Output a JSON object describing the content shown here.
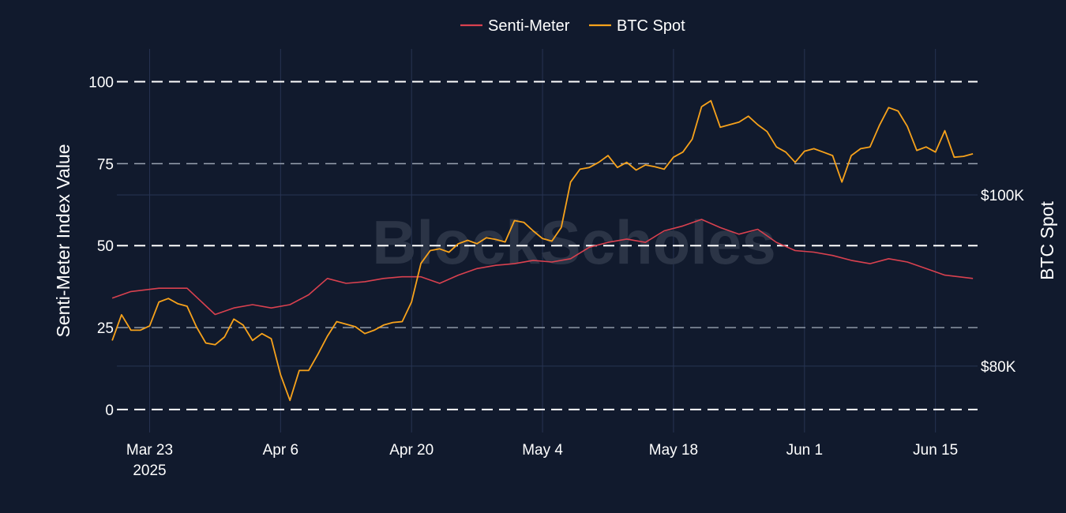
{
  "chart_data": {
    "type": "line",
    "title": "",
    "watermark": "BlockScholes",
    "legend": {
      "position": "top-center",
      "entries": [
        "Senti-Meter",
        "BTC Spot"
      ]
    },
    "x_axis": {
      "type": "date",
      "range": [
        "2025-03-19T12:00",
        "2025-06-19T12:00"
      ],
      "ticks": [
        "2025-03-23",
        "2025-04-06",
        "2025-04-20",
        "2025-05-04",
        "2025-05-18",
        "2025-06-01",
        "2025-06-15"
      ],
      "tick_labels": [
        "Mar 23",
        "Apr 6",
        "Apr 20",
        "May 4",
        "May 18",
        "Jun 1",
        "Jun 15"
      ],
      "first_tick_year": "2025",
      "grid": true
    },
    "y_axis_left": {
      "label": "Senti-Meter Index Value",
      "range": [
        -7,
        110
      ],
      "ticks": [
        0,
        25,
        50,
        75,
        100
      ],
      "tick_labels": [
        "0",
        "25",
        "50",
        "75",
        "100"
      ],
      "reference_lines": [
        {
          "y": 0,
          "style": "dashed",
          "color": "#ffffff"
        },
        {
          "y": 25,
          "style": "dashed",
          "color": "#9aa3b2"
        },
        {
          "y": 50,
          "style": "dashed",
          "color": "#ffffff"
        },
        {
          "y": 75,
          "style": "dashed",
          "color": "#9aa3b2"
        },
        {
          "y": 100,
          "style": "dashed",
          "color": "#ffffff"
        }
      ]
    },
    "y_axis_right": {
      "label": "BTC Spot",
      "range": [
        72250,
        117050
      ],
      "ticks": [
        80000,
        100000
      ],
      "tick_labels": [
        "$80K",
        "$100K"
      ],
      "grid": true
    },
    "series": [
      {
        "name": "Senti-Meter",
        "axis": "left",
        "color": "#d9414f",
        "x": [
          "2025-03-19",
          "2025-03-21",
          "2025-03-24",
          "2025-03-27",
          "2025-03-30",
          "2025-04-01",
          "2025-04-03",
          "2025-04-05",
          "2025-04-07",
          "2025-04-09",
          "2025-04-11",
          "2025-04-13",
          "2025-04-15",
          "2025-04-17",
          "2025-04-19",
          "2025-04-21",
          "2025-04-23",
          "2025-04-25",
          "2025-04-27",
          "2025-04-29",
          "2025-05-01",
          "2025-05-03",
          "2025-05-05",
          "2025-05-07",
          "2025-05-09",
          "2025-05-11",
          "2025-05-13",
          "2025-05-15",
          "2025-05-17",
          "2025-05-19",
          "2025-05-21",
          "2025-05-23",
          "2025-05-25",
          "2025-05-27",
          "2025-05-29",
          "2025-05-31",
          "2025-06-02",
          "2025-06-04",
          "2025-06-06",
          "2025-06-08",
          "2025-06-10",
          "2025-06-12",
          "2025-06-14",
          "2025-06-16",
          "2025-06-19"
        ],
        "y": [
          34,
          36,
          37,
          37,
          29,
          31,
          32,
          31,
          32,
          35,
          40,
          38.5,
          39,
          40,
          40.5,
          40.5,
          38.5,
          41,
          43,
          44,
          44.5,
          45.5,
          45,
          46,
          49.5,
          51,
          52,
          51,
          54.5,
          56,
          58,
          55.5,
          53.5,
          55,
          51,
          48.5,
          48,
          47,
          45.5,
          44.5,
          46,
          45,
          43,
          41,
          40
        ]
      },
      {
        "name": "BTC Spot",
        "axis": "right",
        "color": "#f7a21b",
        "x": [
          "2025-03-19",
          "2025-03-20",
          "2025-03-21",
          "2025-03-22",
          "2025-03-23",
          "2025-03-24",
          "2025-03-25",
          "2025-03-26",
          "2025-03-27",
          "2025-03-28",
          "2025-03-29",
          "2025-03-30",
          "2025-03-31",
          "2025-04-01",
          "2025-04-02",
          "2025-04-03",
          "2025-04-04",
          "2025-04-05",
          "2025-04-06",
          "2025-04-07",
          "2025-04-08",
          "2025-04-09",
          "2025-04-10",
          "2025-04-11",
          "2025-04-12",
          "2025-04-13",
          "2025-04-14",
          "2025-04-15",
          "2025-04-16",
          "2025-04-17",
          "2025-04-18",
          "2025-04-19",
          "2025-04-20",
          "2025-04-21",
          "2025-04-22",
          "2025-04-23",
          "2025-04-24",
          "2025-04-25",
          "2025-04-26",
          "2025-04-27",
          "2025-04-28",
          "2025-04-29",
          "2025-04-30",
          "2025-05-01",
          "2025-05-02",
          "2025-05-03",
          "2025-05-04",
          "2025-05-05",
          "2025-05-06",
          "2025-05-07",
          "2025-05-08",
          "2025-05-09",
          "2025-05-10",
          "2025-05-11",
          "2025-05-12",
          "2025-05-13",
          "2025-05-14",
          "2025-05-15",
          "2025-05-16",
          "2025-05-17",
          "2025-05-18",
          "2025-05-19",
          "2025-05-20",
          "2025-05-21",
          "2025-05-22",
          "2025-05-23",
          "2025-05-24",
          "2025-05-25",
          "2025-05-26",
          "2025-05-27",
          "2025-05-28",
          "2025-05-29",
          "2025-05-30",
          "2025-05-31",
          "2025-06-01",
          "2025-06-02",
          "2025-06-03",
          "2025-06-04",
          "2025-06-05",
          "2025-06-06",
          "2025-06-07",
          "2025-06-08",
          "2025-06-09",
          "2025-06-10",
          "2025-06-11",
          "2025-06-12",
          "2025-06-13",
          "2025-06-14",
          "2025-06-15",
          "2025-06-16",
          "2025-06-17",
          "2025-06-18",
          "2025-06-19"
        ],
        "y": [
          83000,
          86000,
          84200,
          84200,
          84700,
          87500,
          87900,
          87300,
          87000,
          84600,
          82700,
          82500,
          83400,
          85500,
          84800,
          83000,
          83800,
          83200,
          79000,
          76000,
          79500,
          79500,
          81400,
          83500,
          85200,
          84900,
          84600,
          83800,
          84200,
          84800,
          85100,
          85200,
          87500,
          92000,
          93500,
          93700,
          93300,
          94300,
          94700,
          94300,
          95000,
          94800,
          94500,
          97000,
          96800,
          95800,
          94900,
          94600,
          96200,
          101500,
          103000,
          103200,
          103800,
          104600,
          103200,
          103800,
          102900,
          103500,
          103300,
          103000,
          104400,
          105000,
          106500,
          110300,
          111000,
          107900,
          108200,
          108500,
          109200,
          108200,
          107400,
          105600,
          105000,
          103800,
          105100,
          105400,
          105000,
          104600,
          101500,
          104600,
          105400,
          105600,
          108100,
          110200,
          109800,
          108000,
          105200,
          105600,
          105000,
          107500,
          104400,
          104500,
          104800
        ]
      }
    ]
  }
}
